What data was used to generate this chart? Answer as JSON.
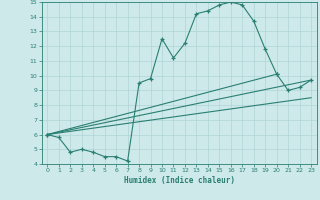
{
  "xlabel": "Humidex (Indice chaleur)",
  "xlim": [
    -0.5,
    23.5
  ],
  "ylim": [
    4,
    15
  ],
  "xticks": [
    0,
    1,
    2,
    3,
    4,
    5,
    6,
    7,
    8,
    9,
    10,
    11,
    12,
    13,
    14,
    15,
    16,
    17,
    18,
    19,
    20,
    21,
    22,
    23
  ],
  "yticks": [
    4,
    5,
    6,
    7,
    8,
    9,
    10,
    11,
    12,
    13,
    14,
    15
  ],
  "line_color": "#2a7f72",
  "bg_color": "#cde9e9",
  "grid_color": "#afd4d4",
  "lines": [
    {
      "x": [
        0,
        1,
        2,
        3,
        4,
        5,
        6,
        7,
        8,
        9,
        10,
        11,
        12,
        13,
        14,
        15,
        16,
        17,
        18,
        19,
        20
      ],
      "y": [
        6.0,
        5.8,
        4.8,
        5.0,
        4.8,
        4.5,
        4.5,
        4.2,
        9.5,
        9.8,
        12.5,
        11.2,
        12.2,
        14.2,
        14.4,
        14.8,
        15.0,
        14.8,
        13.7,
        11.8,
        10.1
      ],
      "marker": true
    },
    {
      "x": [
        0,
        20,
        21,
        22,
        23
      ],
      "y": [
        6.0,
        10.1,
        9.0,
        9.2,
        9.7
      ],
      "marker": true
    },
    {
      "comment": "Straight line 1 from x=0,y=6 to x=23,y=9.7",
      "x": [
        0,
        23
      ],
      "y": [
        6.0,
        9.7
      ],
      "marker": false
    },
    {
      "comment": "Straight line 2 from x=0,y=6 to x=23,y=8.5",
      "x": [
        0,
        23
      ],
      "y": [
        6.0,
        8.5
      ],
      "marker": false
    }
  ]
}
